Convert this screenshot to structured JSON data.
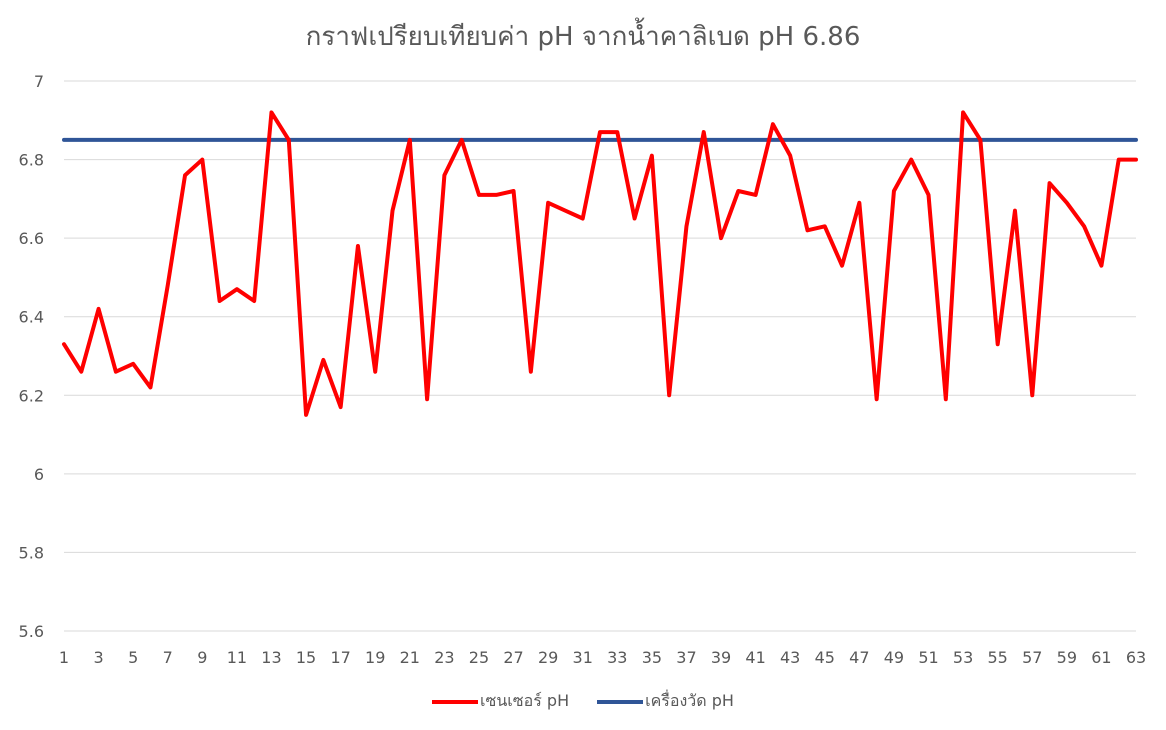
{
  "chart_data": {
    "type": "line",
    "title": "กราฟเปรียบเทียบค่า pH จากน้ำคาลิเบด pH 6.86",
    "xlabel": "",
    "ylabel": "",
    "ylim": [
      5.6,
      7.0
    ],
    "yticks": [
      "5.6",
      "5.8",
      "6",
      "6.2",
      "6.4",
      "6.6",
      "6.8",
      "7"
    ],
    "x": [
      1,
      2,
      3,
      4,
      5,
      6,
      7,
      8,
      9,
      10,
      11,
      12,
      13,
      14,
      15,
      16,
      17,
      18,
      19,
      20,
      21,
      22,
      23,
      24,
      25,
      26,
      27,
      28,
      29,
      30,
      31,
      32,
      33,
      34,
      35,
      36,
      37,
      38,
      39,
      40,
      41,
      42,
      43,
      44,
      45,
      46,
      47,
      48,
      49,
      50,
      51,
      52,
      53,
      54,
      55,
      56,
      57,
      58,
      59,
      60,
      61,
      62,
      63
    ],
    "xtick_labels": [
      "1",
      "3",
      "5",
      "7",
      "9",
      "11",
      "13",
      "15",
      "17",
      "19",
      "21",
      "23",
      "25",
      "27",
      "29",
      "31",
      "33",
      "35",
      "37",
      "39",
      "41",
      "43",
      "45",
      "47",
      "49",
      "51",
      "53",
      "55",
      "57",
      "59",
      "61",
      "63"
    ],
    "grid": true,
    "legend_position": "bottom",
    "series": [
      {
        "name": "เซนเซอร์ pH",
        "color": "#ff0000",
        "values": [
          6.33,
          6.26,
          6.42,
          6.26,
          6.28,
          6.22,
          6.48,
          6.76,
          6.8,
          6.44,
          6.47,
          6.44,
          6.92,
          6.85,
          6.15,
          6.29,
          6.17,
          6.58,
          6.26,
          6.67,
          6.85,
          6.19,
          6.76,
          6.85,
          6.71,
          6.71,
          6.72,
          6.26,
          6.69,
          6.67,
          6.65,
          6.87,
          6.87,
          6.65,
          6.81,
          6.2,
          6.63,
          6.87,
          6.6,
          6.72,
          6.71,
          6.89,
          6.81,
          6.62,
          6.63,
          6.53,
          6.69,
          6.19,
          6.72,
          6.8,
          6.71,
          6.19,
          6.92,
          6.85,
          6.33,
          6.67,
          6.2,
          6.74,
          6.69,
          6.63,
          6.53,
          6.8,
          6.8
        ]
      },
      {
        "name": "เครื่องวัด pH",
        "color": "#2f5597",
        "values": [
          6.85,
          6.85,
          6.85,
          6.85,
          6.85,
          6.85,
          6.85,
          6.85,
          6.85,
          6.85,
          6.85,
          6.85,
          6.85,
          6.85,
          6.85,
          6.85,
          6.85,
          6.85,
          6.85,
          6.85,
          6.85,
          6.85,
          6.85,
          6.85,
          6.85,
          6.85,
          6.85,
          6.85,
          6.85,
          6.85,
          6.85,
          6.85,
          6.85,
          6.85,
          6.85,
          6.85,
          6.85,
          6.85,
          6.85,
          6.85,
          6.85,
          6.85,
          6.85,
          6.85,
          6.85,
          6.85,
          6.85,
          6.85,
          6.85,
          6.85,
          6.85,
          6.85,
          6.85,
          6.85,
          6.85,
          6.85,
          6.85,
          6.85,
          6.85,
          6.85,
          6.85,
          6.85,
          6.85
        ]
      }
    ]
  }
}
